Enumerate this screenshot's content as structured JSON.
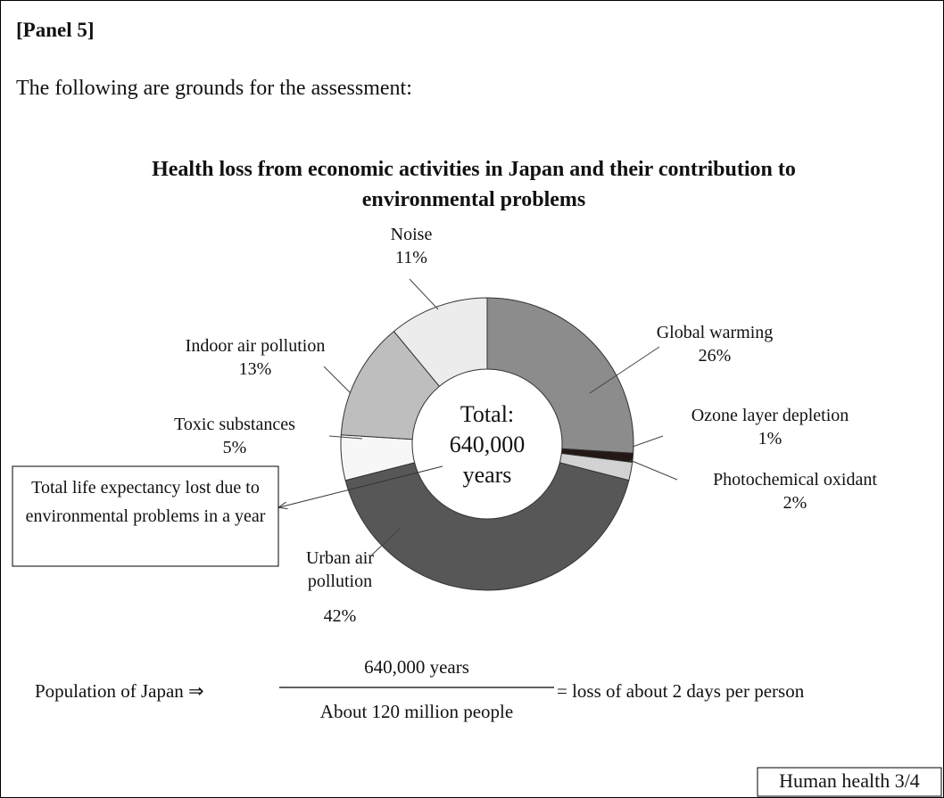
{
  "panel_label": "[Panel 5]",
  "intro": "The following are grounds for the assessment:",
  "chart_data": {
    "type": "donut",
    "title": "Health loss from economic activities in Japan and their contribution to environmental problems",
    "center_label": "Total: 640,000 years",
    "categories": [
      "Global warming",
      "Ozone layer depletion",
      "Photochemical oxidant",
      "Urban air pollution",
      "Toxic substances",
      "Indoor air pollution",
      "Noise"
    ],
    "values": [
      26,
      1,
      2,
      42,
      5,
      13,
      11
    ],
    "value_labels": [
      "26%",
      "1%",
      "2%",
      "42%",
      "5%",
      "13%",
      "11%"
    ],
    "colors": [
      "#8c8c8c",
      "#231815",
      "#d2d2d2",
      "#575757",
      "#f7f7f7",
      "#bebebe",
      "#ececec"
    ]
  },
  "callout": "Total life expectancy lost due to environmental problems in a year",
  "formula": {
    "left": "Population of Japan ⇒",
    "numerator": "640,000 years",
    "denominator": "About 120 million people",
    "right": "= loss of about 2 days per person"
  },
  "footer": "Human health 3/4"
}
